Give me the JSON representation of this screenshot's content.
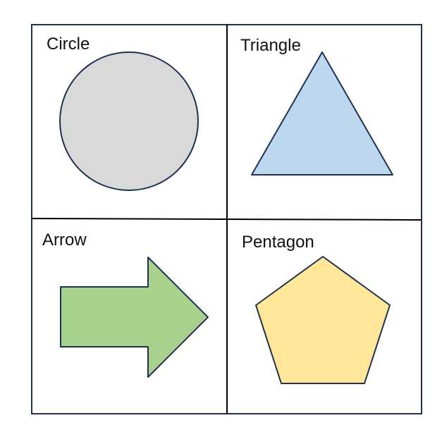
{
  "cells": [
    {
      "label": "Circle",
      "shape": "circle",
      "fill": "#D9D9D9"
    },
    {
      "label": "Triangle",
      "shape": "triangle",
      "fill": "#BDD7EE"
    },
    {
      "label": "Arrow",
      "shape": "arrow",
      "fill": "#A9D18E"
    },
    {
      "label": "Pentagon",
      "shape": "pentagon",
      "fill": "#FFE699"
    }
  ],
  "colors": {
    "outline": "#1F3050",
    "grid": "#000000",
    "background": "#FFFFFF"
  }
}
